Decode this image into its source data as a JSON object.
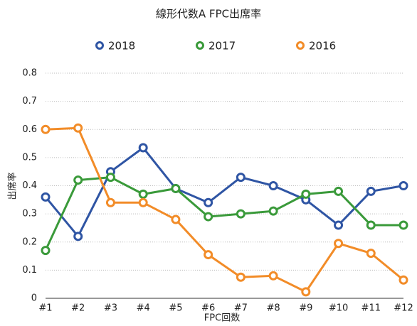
{
  "chart_data": {
    "type": "line",
    "title": "線形代数A FPC出席率",
    "x_label": "FPC回数",
    "y_label": "出席率",
    "categories": [
      "#1",
      "#2",
      "#3",
      "#4",
      "#5",
      "#6",
      "#7",
      "#8",
      "#9",
      "#10",
      "#11",
      "#12"
    ],
    "series": [
      {
        "name": "2018",
        "color": "#2f55a4",
        "values": [
          0.36,
          0.22,
          0.45,
          0.535,
          0.39,
          0.34,
          0.43,
          0.4,
          0.35,
          0.26,
          0.38,
          0.4
        ]
      },
      {
        "name": "2017",
        "color": "#3a9a3a",
        "values": [
          0.17,
          0.42,
          0.43,
          0.37,
          0.39,
          0.29,
          0.3,
          0.31,
          0.37,
          0.38,
          0.26,
          0.26
        ]
      },
      {
        "name": "2016",
        "color": "#f28c28",
        "values": [
          0.6,
          0.605,
          0.34,
          0.34,
          0.28,
          0.155,
          0.075,
          0.08,
          0.023,
          0.195,
          0.16,
          0.065
        ]
      }
    ],
    "ylim": [
      0,
      0.8
    ],
    "yticks": [
      0,
      0.1,
      0.2,
      0.3,
      0.4,
      0.5,
      0.6,
      0.7,
      0.8
    ],
    "grid": true,
    "legend": "top"
  }
}
